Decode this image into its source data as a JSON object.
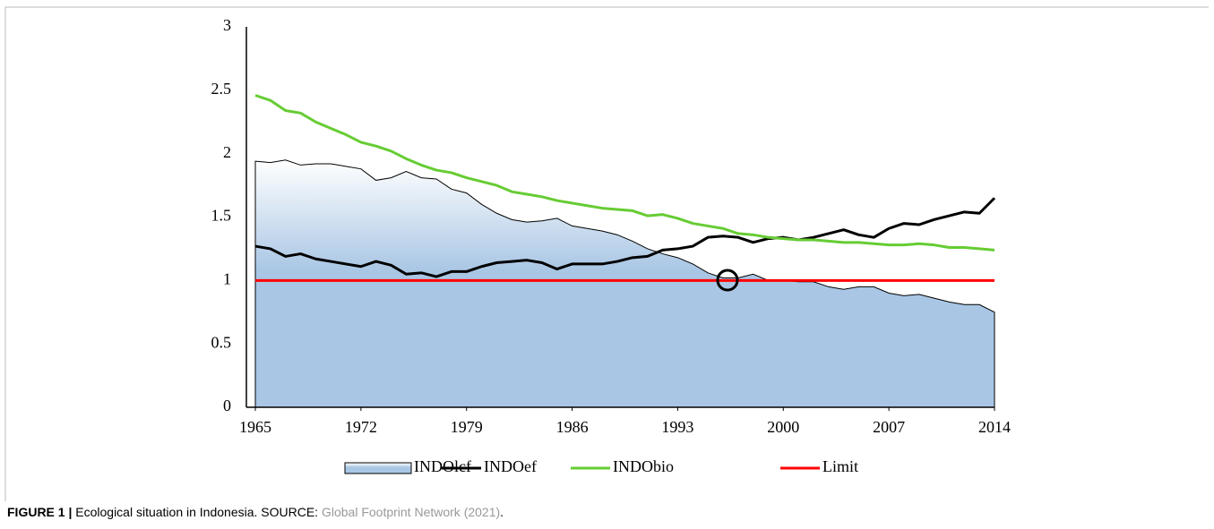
{
  "chart_data": {
    "type": "line",
    "x": [
      1965,
      1966,
      1967,
      1968,
      1969,
      1970,
      1971,
      1972,
      1973,
      1974,
      1975,
      1976,
      1977,
      1978,
      1979,
      1980,
      1981,
      1982,
      1983,
      1984,
      1985,
      1986,
      1987,
      1988,
      1989,
      1990,
      1991,
      1992,
      1993,
      1994,
      1995,
      1996,
      1997,
      1998,
      1999,
      2000,
      2001,
      2002,
      2003,
      2004,
      2005,
      2006,
      2007,
      2008,
      2009,
      2010,
      2011,
      2012,
      2013,
      2014
    ],
    "xlim": [
      1965,
      2014
    ],
    "xticks": [
      1965,
      1972,
      1979,
      1986,
      1993,
      2000,
      2007,
      2014
    ],
    "ylim": [
      0,
      3
    ],
    "yticks": [
      0,
      0.5,
      1,
      1.5,
      2,
      2.5,
      3
    ],
    "grid": false,
    "legend": "bottom",
    "series": [
      {
        "name": "INDOlcf",
        "kind": "area",
        "color": "#a9c6e4",
        "values": [
          1.94,
          1.93,
          1.95,
          1.91,
          1.92,
          1.92,
          1.9,
          1.88,
          1.79,
          1.81,
          1.86,
          1.81,
          1.8,
          1.72,
          1.69,
          1.6,
          1.53,
          1.48,
          1.46,
          1.47,
          1.49,
          1.43,
          1.41,
          1.39,
          1.36,
          1.31,
          1.25,
          1.21,
          1.18,
          1.13,
          1.06,
          1.02,
          1.02,
          1.05,
          1.0,
          1.0,
          0.99,
          0.99,
          0.95,
          0.93,
          0.95,
          0.95,
          0.9,
          0.88,
          0.89,
          0.86,
          0.83,
          0.81,
          0.81,
          0.75
        ]
      },
      {
        "name": "INDOef",
        "kind": "line",
        "color": "#000000",
        "values": [
          1.27,
          1.25,
          1.19,
          1.21,
          1.17,
          1.15,
          1.13,
          1.11,
          1.15,
          1.12,
          1.05,
          1.06,
          1.03,
          1.07,
          1.07,
          1.11,
          1.14,
          1.15,
          1.16,
          1.14,
          1.09,
          1.13,
          1.13,
          1.13,
          1.15,
          1.18,
          1.19,
          1.24,
          1.25,
          1.27,
          1.34,
          1.35,
          1.34,
          1.3,
          1.33,
          1.34,
          1.32,
          1.34,
          1.37,
          1.4,
          1.36,
          1.34,
          1.41,
          1.45,
          1.44,
          1.48,
          1.51,
          1.54,
          1.53,
          1.65
        ]
      },
      {
        "name": "INDObio",
        "kind": "line",
        "color": "#66cc33",
        "values": [
          2.46,
          2.42,
          2.34,
          2.32,
          2.25,
          2.2,
          2.15,
          2.09,
          2.06,
          2.02,
          1.96,
          1.91,
          1.87,
          1.85,
          1.81,
          1.78,
          1.75,
          1.7,
          1.68,
          1.66,
          1.63,
          1.61,
          1.59,
          1.57,
          1.56,
          1.55,
          1.51,
          1.52,
          1.49,
          1.45,
          1.43,
          1.41,
          1.37,
          1.36,
          1.34,
          1.33,
          1.32,
          1.32,
          1.31,
          1.3,
          1.3,
          1.29,
          1.28,
          1.28,
          1.29,
          1.28,
          1.26,
          1.26,
          1.25,
          1.24
        ]
      },
      {
        "name": "Limit",
        "kind": "line",
        "color": "#ff0000",
        "values": [
          1,
          1,
          1,
          1,
          1,
          1,
          1,
          1,
          1,
          1,
          1,
          1,
          1,
          1,
          1,
          1,
          1,
          1,
          1,
          1,
          1,
          1,
          1,
          1,
          1,
          1,
          1,
          1,
          1,
          1,
          1,
          1,
          1,
          1,
          1,
          1,
          1,
          1,
          1,
          1,
          1,
          1,
          1,
          1,
          1,
          1,
          1,
          1,
          1,
          1
        ]
      }
    ]
  },
  "caption": {
    "label": "FIGURE 1 |",
    "text": "Ecological situation in Indonesia. SOURCE:",
    "source": "Global Footprint Network (2021)",
    "end": "."
  }
}
